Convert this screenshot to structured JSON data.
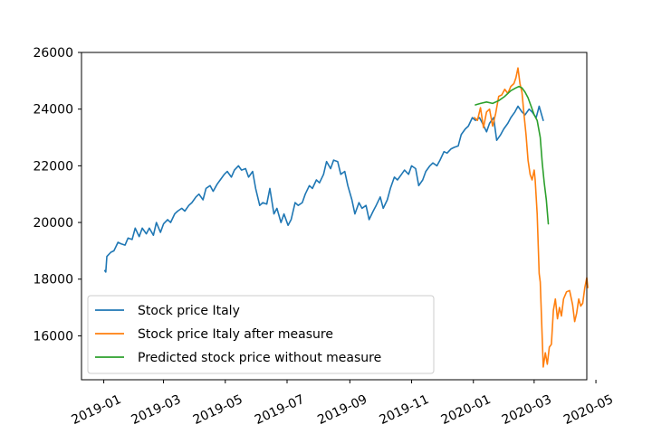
{
  "chart_data": {
    "type": "line",
    "title": "",
    "xlabel": "",
    "ylabel": "",
    "xlim": [
      "2018-12-10",
      "2020-04-22"
    ],
    "ylim": [
      14450,
      26000
    ],
    "grid": false,
    "legend_position": "lower-left",
    "x_ticks": [
      "2019-01",
      "2019-03",
      "2019-05",
      "2019-07",
      "2019-09",
      "2019-11",
      "2020-01",
      "2020-03",
      "2020-05"
    ],
    "y_ticks": [
      16000,
      18000,
      20000,
      22000,
      24000,
      26000
    ],
    "y_tick_labels": [
      "16000",
      "18000",
      "20000",
      "22000",
      "24000",
      "26000"
    ],
    "series": [
      {
        "name": "Stock price Italy",
        "color": "#1f77b4",
        "points": [
          [
            "2019-01-02",
            18300
          ],
          [
            "2019-01-03",
            18250
          ],
          [
            "2019-01-04",
            18800
          ],
          [
            "2019-01-08",
            18950
          ],
          [
            "2019-01-11",
            19000
          ],
          [
            "2019-01-15",
            19300
          ],
          [
            "2019-01-18",
            19250
          ],
          [
            "2019-01-22",
            19200
          ],
          [
            "2019-01-25",
            19450
          ],
          [
            "2019-01-29",
            19400
          ],
          [
            "2019-02-01",
            19800
          ],
          [
            "2019-02-05",
            19500
          ],
          [
            "2019-02-08",
            19800
          ],
          [
            "2019-02-12",
            19600
          ],
          [
            "2019-02-15",
            19800
          ],
          [
            "2019-02-19",
            19550
          ],
          [
            "2019-02-22",
            20000
          ],
          [
            "2019-02-26",
            19650
          ],
          [
            "2019-03-01",
            19950
          ],
          [
            "2019-03-05",
            20100
          ],
          [
            "2019-03-08",
            20000
          ],
          [
            "2019-03-12",
            20300
          ],
          [
            "2019-03-15",
            20400
          ],
          [
            "2019-03-19",
            20500
          ],
          [
            "2019-03-22",
            20400
          ],
          [
            "2019-03-26",
            20600
          ],
          [
            "2019-03-29",
            20700
          ],
          [
            "2019-04-02",
            20900
          ],
          [
            "2019-04-05",
            21000
          ],
          [
            "2019-04-09",
            20800
          ],
          [
            "2019-04-12",
            21200
          ],
          [
            "2019-04-16",
            21300
          ],
          [
            "2019-04-19",
            21100
          ],
          [
            "2019-04-23",
            21350
          ],
          [
            "2019-04-26",
            21500
          ],
          [
            "2019-04-30",
            21700
          ],
          [
            "2019-05-03",
            21800
          ],
          [
            "2019-05-07",
            21600
          ],
          [
            "2019-05-10",
            21850
          ],
          [
            "2019-05-14",
            22000
          ],
          [
            "2019-05-17",
            21850
          ],
          [
            "2019-05-21",
            21900
          ],
          [
            "2019-05-24",
            21600
          ],
          [
            "2019-05-28",
            21800
          ],
          [
            "2019-05-31",
            21200
          ],
          [
            "2019-06-04",
            20600
          ],
          [
            "2019-06-07",
            20700
          ],
          [
            "2019-06-11",
            20650
          ],
          [
            "2019-06-14",
            21200
          ],
          [
            "2019-06-18",
            20300
          ],
          [
            "2019-06-21",
            20500
          ],
          [
            "2019-06-25",
            20000
          ],
          [
            "2019-06-28",
            20300
          ],
          [
            "2019-07-02",
            19900
          ],
          [
            "2019-07-05",
            20100
          ],
          [
            "2019-07-09",
            20700
          ],
          [
            "2019-07-12",
            20600
          ],
          [
            "2019-07-16",
            20700
          ],
          [
            "2019-07-19",
            21000
          ],
          [
            "2019-07-23",
            21300
          ],
          [
            "2019-07-26",
            21200
          ],
          [
            "2019-07-30",
            21500
          ],
          [
            "2019-08-02",
            21400
          ],
          [
            "2019-08-06",
            21700
          ],
          [
            "2019-08-09",
            22150
          ],
          [
            "2019-08-13",
            21900
          ],
          [
            "2019-08-16",
            22200
          ],
          [
            "2019-08-20",
            22150
          ],
          [
            "2019-08-23",
            21700
          ],
          [
            "2019-08-27",
            21800
          ],
          [
            "2019-08-30",
            21300
          ],
          [
            "2019-09-03",
            20800
          ],
          [
            "2019-09-06",
            20300
          ],
          [
            "2019-09-10",
            20700
          ],
          [
            "2019-09-13",
            20500
          ],
          [
            "2019-09-17",
            20600
          ],
          [
            "2019-09-20",
            20100
          ],
          [
            "2019-09-24",
            20400
          ],
          [
            "2019-09-27",
            20600
          ],
          [
            "2019-10-01",
            20900
          ],
          [
            "2019-10-04",
            20500
          ],
          [
            "2019-10-08",
            20800
          ],
          [
            "2019-10-11",
            21200
          ],
          [
            "2019-10-15",
            21600
          ],
          [
            "2019-10-18",
            21500
          ],
          [
            "2019-10-22",
            21700
          ],
          [
            "2019-10-25",
            21850
          ],
          [
            "2019-10-29",
            21700
          ],
          [
            "2019-11-01",
            22000
          ],
          [
            "2019-11-05",
            21900
          ],
          [
            "2019-11-08",
            21300
          ],
          [
            "2019-11-12",
            21500
          ],
          [
            "2019-11-15",
            21800
          ],
          [
            "2019-11-19",
            22000
          ],
          [
            "2019-11-22",
            22100
          ],
          [
            "2019-11-26",
            22000
          ],
          [
            "2019-11-29",
            22200
          ],
          [
            "2019-12-03",
            22500
          ],
          [
            "2019-12-06",
            22450
          ],
          [
            "2019-12-10",
            22600
          ],
          [
            "2019-12-13",
            22650
          ],
          [
            "2019-12-17",
            22700
          ],
          [
            "2019-12-20",
            23100
          ],
          [
            "2019-12-24",
            23300
          ],
          [
            "2019-12-27",
            23400
          ],
          [
            "2019-12-31",
            23700
          ],
          [
            "2020-01-03",
            23600
          ],
          [
            "2020-01-07",
            23700
          ],
          [
            "2020-01-10",
            23500
          ],
          [
            "2020-01-14",
            23200
          ],
          [
            "2020-01-17",
            23500
          ],
          [
            "2020-01-21",
            23700
          ],
          [
            "2020-01-24",
            22900
          ],
          [
            "2020-01-28",
            23100
          ],
          [
            "2020-01-31",
            23300
          ],
          [
            "2020-02-04",
            23500
          ],
          [
            "2020-02-07",
            23700
          ],
          [
            "2020-02-11",
            23900
          ],
          [
            "2020-02-14",
            24100
          ],
          [
            "2020-02-18",
            23900
          ],
          [
            "2020-02-21",
            23800
          ],
          [
            "2020-02-25",
            24000
          ],
          [
            "2020-02-28",
            23900
          ],
          [
            "2020-03-03",
            23700
          ],
          [
            "2020-03-06",
            24100
          ],
          [
            "2020-03-10",
            23600
          ]
        ]
      },
      {
        "name": "Stock price Italy after measure",
        "color": "#ff7f0e",
        "points": [
          [
            "2020-01-02",
            23700
          ],
          [
            "2020-01-05",
            23600
          ],
          [
            "2020-01-08",
            24050
          ],
          [
            "2020-01-11",
            23350
          ],
          [
            "2020-01-14",
            23900
          ],
          [
            "2020-01-17",
            24000
          ],
          [
            "2020-01-20",
            23400
          ],
          [
            "2020-01-23",
            23850
          ],
          [
            "2020-01-26",
            24450
          ],
          [
            "2020-01-29",
            24500
          ],
          [
            "2020-02-01",
            24700
          ],
          [
            "2020-02-04",
            24550
          ],
          [
            "2020-02-07",
            24800
          ],
          [
            "2020-02-10",
            24900
          ],
          [
            "2020-02-12",
            25100
          ],
          [
            "2020-02-14",
            25450
          ],
          [
            "2020-02-16",
            24900
          ],
          [
            "2020-02-18",
            24600
          ],
          [
            "2020-02-20",
            23800
          ],
          [
            "2020-02-22",
            23100
          ],
          [
            "2020-02-24",
            22200
          ],
          [
            "2020-02-26",
            21700
          ],
          [
            "2020-02-28",
            21500
          ],
          [
            "2020-03-01",
            21850
          ],
          [
            "2020-03-02",
            21500
          ],
          [
            "2020-03-04",
            20300
          ],
          [
            "2020-03-06",
            18200
          ],
          [
            "2020-03-07",
            17900
          ],
          [
            "2020-03-09",
            15900
          ],
          [
            "2020-03-10",
            14900
          ],
          [
            "2020-03-12",
            15400
          ],
          [
            "2020-03-14",
            15000
          ],
          [
            "2020-03-16",
            15600
          ],
          [
            "2020-03-18",
            15700
          ],
          [
            "2020-03-20",
            16900
          ],
          [
            "2020-03-22",
            17300
          ],
          [
            "2020-03-24",
            16600
          ],
          [
            "2020-03-26",
            17000
          ],
          [
            "2020-03-28",
            16700
          ],
          [
            "2020-03-30",
            17300
          ],
          [
            "2020-04-02",
            17550
          ],
          [
            "2020-04-05",
            17600
          ],
          [
            "2020-04-08",
            17100
          ],
          [
            "2020-04-10",
            16500
          ],
          [
            "2020-04-12",
            16800
          ],
          [
            "2020-04-14",
            17300
          ],
          [
            "2020-04-16",
            17050
          ],
          [
            "2020-04-18",
            17150
          ],
          [
            "2020-04-20",
            17700
          ],
          [
            "2020-04-22",
            18050
          ],
          [
            "2020-04-23",
            17700
          ]
        ]
      },
      {
        "name": "Predicted stock price without measure",
        "color": "#2ca02c",
        "points": [
          [
            "2020-01-03",
            24150
          ],
          [
            "2020-01-08",
            24200
          ],
          [
            "2020-01-14",
            24250
          ],
          [
            "2020-01-20",
            24200
          ],
          [
            "2020-01-26",
            24300
          ],
          [
            "2020-02-01",
            24450
          ],
          [
            "2020-02-07",
            24650
          ],
          [
            "2020-02-12",
            24750
          ],
          [
            "2020-02-15",
            24800
          ],
          [
            "2020-02-18",
            24750
          ],
          [
            "2020-02-21",
            24600
          ],
          [
            "2020-02-24",
            24400
          ],
          [
            "2020-02-27",
            24100
          ],
          [
            "2020-03-01",
            23800
          ],
          [
            "2020-03-04",
            23600
          ],
          [
            "2020-03-07",
            23000
          ],
          [
            "2020-03-09",
            22100
          ],
          [
            "2020-03-11",
            21400
          ],
          [
            "2020-03-13",
            20800
          ],
          [
            "2020-03-15",
            19950
          ]
        ]
      }
    ]
  }
}
